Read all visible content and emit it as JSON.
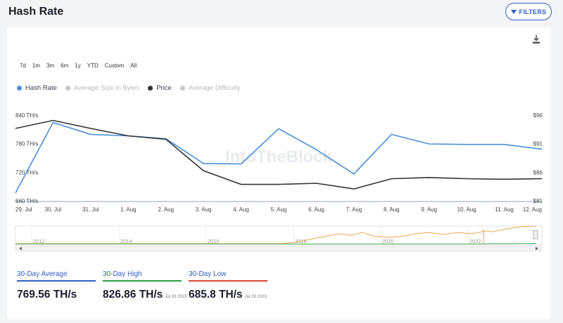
{
  "header": {
    "title": "Hash Rate",
    "filters_label": "FILTERS"
  },
  "range_buttons": [
    "7d",
    "1m",
    "3m",
    "6m",
    "1y",
    "YTD",
    "Custom",
    "All"
  ],
  "legend": [
    {
      "label": "Hash Rate",
      "color": "#4a8fd9",
      "active": true
    },
    {
      "label": "Average Size In Bytes",
      "color": "#c8c8c8",
      "active": false
    },
    {
      "label": "Price",
      "color": "#333333",
      "active": true
    },
    {
      "label": "Average Difficulty",
      "color": "#c8c8c8",
      "active": false
    }
  ],
  "watermark": "IntoTheBlock",
  "chart_data": {
    "type": "line",
    "title": "Hash Rate",
    "x": [
      "29. Jul",
      "30. Jul",
      "31. Jul",
      "1. Aug",
      "2. Aug",
      "3. Aug",
      "4. Aug",
      "5. Aug",
      "6. Aug",
      "7. Aug",
      "8. Aug",
      "9. Aug",
      "10. Aug",
      "11. Aug",
      "12. Aug"
    ],
    "y_left_ticks": [
      "840 TH/s",
      "780 TH/s",
      "720 TH/s",
      "660 TH/s"
    ],
    "y_left_range": [
      660,
      840
    ],
    "y_right_ticks": [
      "$96",
      "$91",
      "$86",
      "$81"
    ],
    "y_right_range": [
      81,
      96
    ],
    "series": [
      {
        "name": "Hash Rate",
        "axis": "left",
        "color": "#4a8fd9",
        "values": [
          678,
          826,
          801,
          798,
          792,
          740,
          739,
          813,
          769,
          718,
          801,
          781,
          780,
          780,
          770
        ]
      },
      {
        "name": "Price",
        "axis": "right",
        "color": "#333333",
        "values": [
          93.8,
          95.2,
          93.8,
          92.5,
          91.9,
          86.4,
          84.0,
          84.0,
          84.2,
          83.2,
          85.0,
          85.2,
          85.0,
          84.9,
          85.0
        ]
      }
    ],
    "navigator": {
      "x_labels": [
        "2012",
        "2014",
        "2016",
        "2018",
        "2020",
        "2022"
      ]
    },
    "grid": false,
    "legend_position": "top-left"
  },
  "stats": [
    {
      "label": "30-Day Average",
      "value": "769.56 TH/s",
      "date": "",
      "color": "#2f5ec4"
    },
    {
      "label": "30-Day High",
      "value": "826.86 TH/s",
      "date": "Jul 30 2023",
      "color": "#2a9d3c"
    },
    {
      "label": "30-Day Low",
      "value": "685.8 TH/s",
      "date": "Jul 29 2023",
      "color": "#d9443a"
    }
  ]
}
